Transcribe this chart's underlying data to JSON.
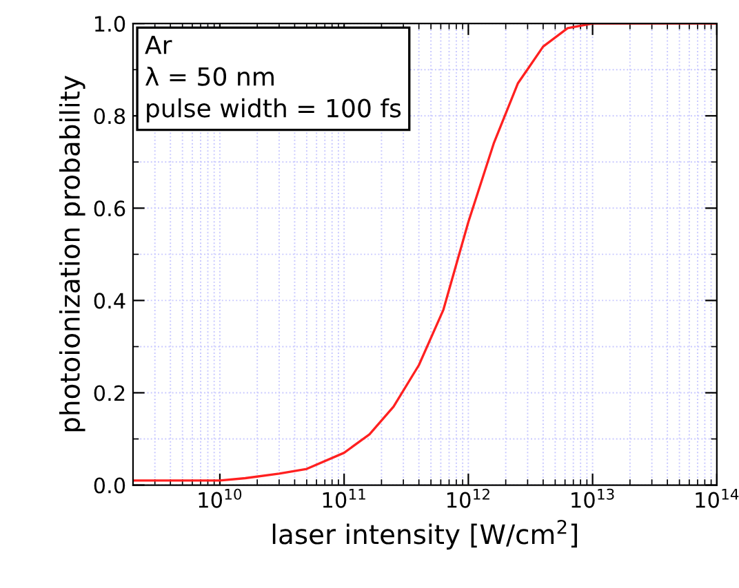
{
  "chart_data": {
    "type": "line",
    "xlabel": "laser intensity [W/cm$^{2}$]",
    "ylabel": "photoionization probability",
    "annotations": [
      "Ar",
      "λ = 50 nm",
      "pulse width = 100 fs"
    ],
    "log": "x",
    "grid": true,
    "legend": false,
    "marker": "none",
    "line_style": "solid",
    "xlim": [
      2000000000.0,
      100000000000000.0
    ],
    "ylim": [
      0,
      1.0
    ],
    "xticks": [
      {
        "value": 10000000000.0,
        "label": "10$^{10}$"
      },
      {
        "value": 100000000000.0,
        "label": "10$^{11}$"
      },
      {
        "value": 1000000000000.0,
        "label": "10$^{12}$"
      },
      {
        "value": 10000000000000.0,
        "label": "10$^{13}$"
      },
      {
        "value": 100000000000000.0,
        "label": "10$^{14}$"
      }
    ],
    "yticks": [
      {
        "value": 0,
        "label": "0.0"
      },
      {
        "value": 0.2,
        "label": "0.2"
      },
      {
        "value": 0.4,
        "label": "0.4"
      },
      {
        "value": 0.6,
        "label": "0.6"
      },
      {
        "value": 0.8,
        "label": "0.8"
      },
      {
        "value": 1.0,
        "label": "1.0"
      }
    ],
    "series": [
      {
        "color": "#ff2020",
        "x": [
          2000000000.0,
          3000000000.0,
          5000000000.0,
          10000000000.0,
          16000000000.0,
          30000000000.0,
          50000000000.0,
          100000000000.0,
          160000000000.0,
          250000000000.0,
          400000000000.0,
          630000000000.0,
          1000000000000.0,
          1600000000000.0,
          2500000000000.0,
          4000000000000.0,
          6300000000000.0,
          10000000000000.0,
          100000000000000.0
        ],
        "values": [
          0.01,
          0.01,
          0.01,
          0.01,
          0.015,
          0.025,
          0.035,
          0.07,
          0.11,
          0.17,
          0.26,
          0.38,
          0.57,
          0.74,
          0.87,
          0.95,
          0.99,
          1.0,
          1.0
        ]
      }
    ]
  }
}
